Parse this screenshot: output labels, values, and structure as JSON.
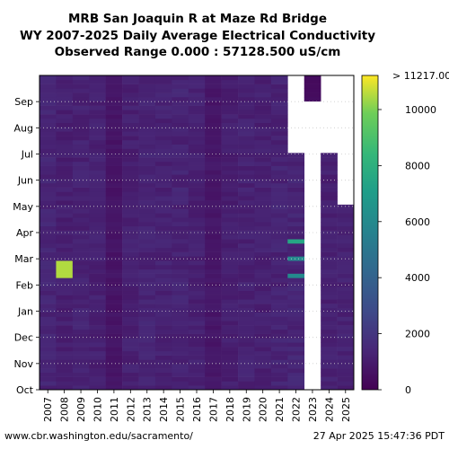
{
  "chart_data": {
    "type": "heatmap",
    "title_lines": [
      "MRB San Joaquin R at Maze Rd Bridge",
      "WY 2007-2025 Daily Average Electrical Conductivity",
      "Observed Range 0.000 : 57128.500 uS/cm"
    ],
    "x_categories": [
      "2007",
      "2008",
      "2009",
      "2010",
      "2011",
      "2012",
      "2013",
      "2014",
      "2015",
      "2016",
      "2017",
      "2018",
      "2019",
      "2020",
      "2021",
      "2022",
      "2023",
      "2024",
      "2025"
    ],
    "y_month_labels": [
      "Oct",
      "Nov",
      "Dec",
      "Jan",
      "Feb",
      "Mar",
      "Apr",
      "May",
      "Jun",
      "Jul",
      "Aug",
      "Sep"
    ],
    "colorbar": {
      "colormap": "viridis",
      "range": [
        0,
        11217
      ],
      "ticks": [
        0,
        2000,
        4000,
        6000,
        8000,
        10000
      ],
      "top_label": "> 11217.00"
    },
    "typical_values_by_year": [
      1300,
      1100,
      1200,
      1150,
      700,
      1150,
      1250,
      1200,
      1250,
      1150,
      800,
      1100,
      1200,
      1150,
      1250,
      1300,
      400,
      1150,
      1200
    ],
    "notable_values": [
      {
        "year": "2008",
        "month": "Feb",
        "value": 10500
      },
      {
        "year": "2022",
        "month": "Mar",
        "value": 7500
      },
      {
        "year": "2022",
        "month": "Feb",
        "value": 6000
      }
    ],
    "missing_data": [
      {
        "year": "2022",
        "from": "Jul",
        "to": "Sep"
      },
      {
        "year": "2023",
        "from": "Oct",
        "to": "Aug"
      },
      {
        "year": "2024",
        "from": "Jul",
        "to": "Sep"
      },
      {
        "year": "2025",
        "from": "May",
        "to": "Sep"
      }
    ]
  },
  "footer": {
    "source": "www.cbr.washington.edu/sacramento/",
    "timestamp": "27 Apr 2025 15:47:36 PDT"
  }
}
